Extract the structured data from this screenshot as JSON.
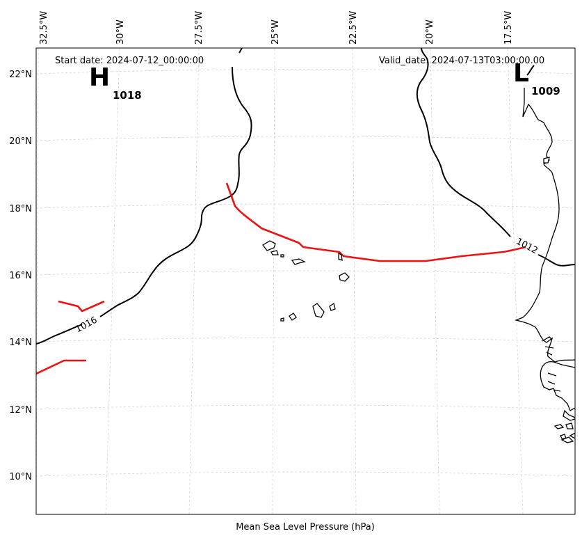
{
  "map": {
    "start_date": "Start date: 2024-07-12_00:00:00",
    "valid_date": "Valid_date: 2024-07-13T03:00:00.00",
    "caption": "Mean Sea Level Pressure (hPa)",
    "longitude_labels": [
      "32.5°W",
      "30°W",
      "27.5°W",
      "25°W",
      "22.5°W",
      "20°W",
      "17.5°W"
    ],
    "latitude_labels": [
      "22°N",
      "20°N",
      "18°N",
      "16°N",
      "14°N",
      "12°N",
      "10°N"
    ],
    "pressure_centers": [
      {
        "type": "H",
        "value": "1018"
      },
      {
        "type": "L",
        "value": "1009"
      }
    ],
    "isobar_labels": [
      "1016",
      "1012"
    ],
    "colors": {
      "front": "#ee1111",
      "isobar": "#000000",
      "grid": "#d3d3d3"
    }
  }
}
